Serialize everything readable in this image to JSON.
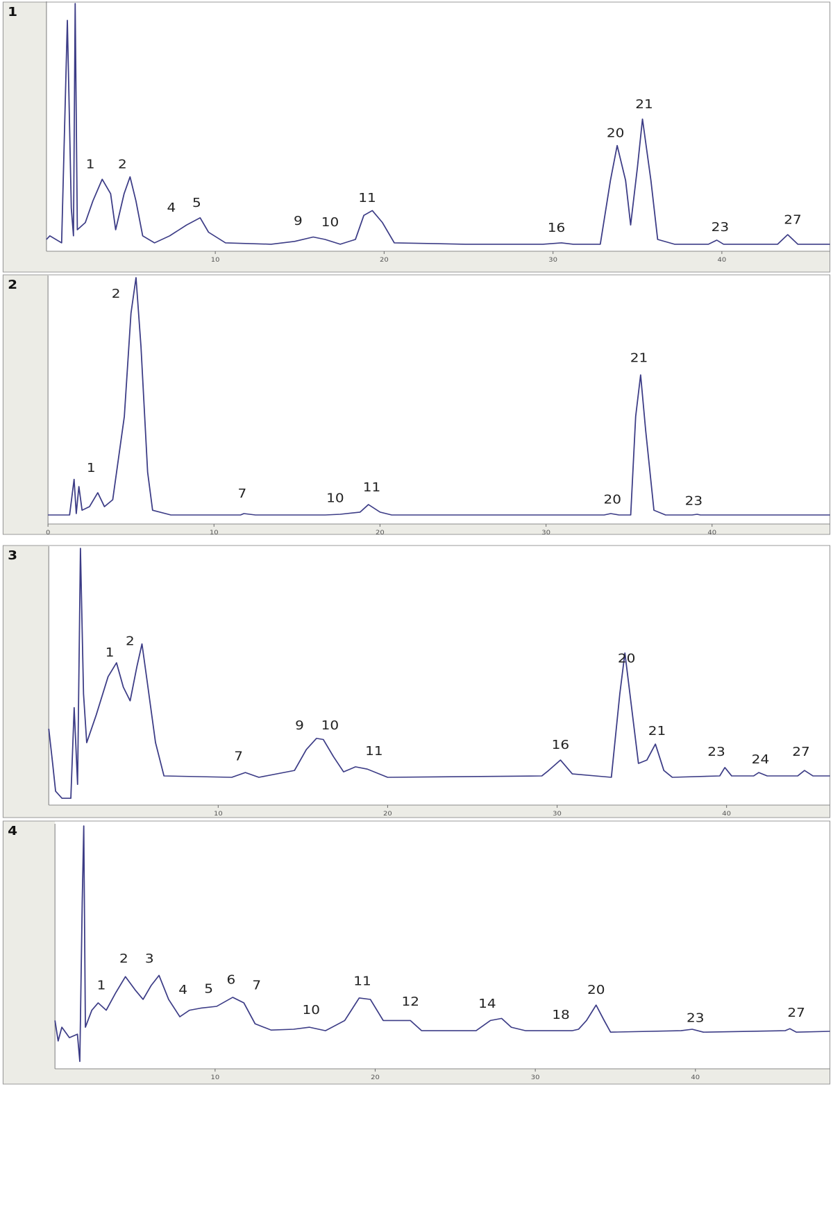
{
  "chart_data": [
    {
      "type": "line",
      "title": "1",
      "color": "#3c3c86",
      "x": [
        0,
        0.2,
        0.9,
        1.24,
        1.47,
        1.6,
        1.7,
        1.83,
        2.3,
        2.75,
        3.3,
        3.8,
        4.1,
        4.6,
        4.95,
        5.3,
        5.7,
        6.4,
        7.3,
        8.3,
        9.1,
        9.6,
        10.6,
        13.3,
        14.7,
        15.8,
        16.5,
        17.4,
        18.3,
        18.8,
        19.3,
        19.9,
        20.6,
        24.8,
        29.4,
        30.5,
        31.2,
        32.8,
        33.4,
        33.8,
        34.3,
        34.6,
        35,
        35.3,
        35.8,
        36.2,
        37.2,
        39.2,
        39.7,
        40.1,
        43.3,
        43.9,
        44.5,
        46.4
      ],
      "values": [
        2,
        3.5,
        0.6,
        93,
        15,
        3.5,
        100,
        6,
        9,
        18,
        27,
        21,
        6,
        21,
        28,
        18,
        3.5,
        0.6,
        3.5,
        8,
        11,
        5,
        0.6,
        0,
        1.2,
        3,
        2,
        0,
        2,
        12,
        14,
        9,
        0.6,
        0,
        0,
        0.6,
        0,
        0,
        26.5,
        41,
        26.5,
        8,
        32,
        52,
        26.5,
        2,
        0,
        0,
        1.7,
        0,
        0,
        4,
        0,
        0
      ],
      "xlim": [
        0,
        46.4
      ],
      "ylim": [
        -2.9,
        100
      ],
      "xticks": [
        10,
        20,
        30,
        40
      ],
      "annotations": [
        {
          "text": "1",
          "x": 2.6,
          "y": 33
        },
        {
          "text": "2",
          "x": 4.5,
          "y": 33
        },
        {
          "text": "4",
          "x": 7.4,
          "y": 15
        },
        {
          "text": "5",
          "x": 8.9,
          "y": 17
        },
        {
          "text": "9",
          "x": 14.9,
          "y": 9.5
        },
        {
          "text": "10",
          "x": 16.8,
          "y": 9
        },
        {
          "text": "11",
          "x": 19.0,
          "y": 19
        },
        {
          "text": "16",
          "x": 30.2,
          "y": 6.6
        },
        {
          "text": "20",
          "x": 33.7,
          "y": 46
        },
        {
          "text": "21",
          "x": 35.4,
          "y": 58
        },
        {
          "text": "23",
          "x": 39.9,
          "y": 7
        },
        {
          "text": "27",
          "x": 44.2,
          "y": 10
        }
      ]
    },
    {
      "type": "line",
      "title": "2",
      "color": "#3c3c86",
      "x": [
        0,
        1.3,
        1.57,
        1.7,
        1.86,
        2.05,
        2.5,
        3.0,
        3.4,
        3.9,
        4.6,
        5.0,
        5.3,
        5.6,
        6.0,
        6.3,
        7.4,
        11.6,
        11.8,
        12.5,
        16.7,
        17.6,
        18.8,
        19.3,
        20.0,
        20.7,
        33.5,
        33.9,
        34.4,
        35.1,
        35.4,
        35.7,
        36.0,
        36.5,
        37.2,
        38.8,
        39.1,
        39.3,
        47.1
      ],
      "values": [
        0,
        0,
        15,
        0.6,
        12,
        2,
        3.5,
        9.4,
        3.5,
        6.4,
        41.5,
        85,
        100,
        71,
        18,
        2,
        0,
        0,
        0.6,
        0,
        0,
        0.3,
        1.2,
        4.4,
        1.2,
        0,
        0,
        0.6,
        0,
        0,
        41.5,
        59,
        35.7,
        2,
        0,
        0,
        0.3,
        0,
        0
      ],
      "xlim": [
        0,
        47.1
      ],
      "ylim": [
        -3.8,
        100
      ],
      "xticks": [
        0,
        10,
        20,
        30,
        40
      ],
      "annotations": [
        {
          "text": "1",
          "x": 2.6,
          "y": 19.6
        },
        {
          "text": "2",
          "x": 4.1,
          "y": 93
        },
        {
          "text": "7",
          "x": 11.7,
          "y": 8.8
        },
        {
          "text": "10",
          "x": 17.3,
          "y": 7
        },
        {
          "text": "11",
          "x": 19.5,
          "y": 11.4
        },
        {
          "text": "20",
          "x": 34.0,
          "y": 6.4
        },
        {
          "text": "21",
          "x": 35.6,
          "y": 66
        },
        {
          "text": "23",
          "x": 38.9,
          "y": 5.8
        }
      ]
    },
    {
      "type": "line",
      "title": "3",
      "color": "#3c3c86",
      "x": [
        0,
        0.23,
        0.4,
        0.78,
        1.3,
        1.5,
        1.7,
        1.87,
        2.05,
        2.24,
        2.8,
        3.5,
        4.0,
        4.4,
        4.8,
        5.2,
        5.5,
        5.8,
        6.3,
        6.8,
        10.8,
        11.6,
        12.4,
        14.5,
        15.2,
        15.8,
        16.2,
        16.8,
        17.4,
        18.1,
        18.8,
        20,
        29.1,
        29.5,
        30.2,
        30.9,
        33.2,
        33.7,
        34.0,
        34.3,
        34.8,
        35.3,
        35.8,
        36.3,
        36.8,
        39.6,
        39.9,
        40.3,
        41.6,
        41.9,
        42.4,
        44.2,
        44.6,
        45.1,
        46.1
      ],
      "values": [
        20.7,
        5.5,
        -6.7,
        -9.8,
        -9.8,
        30,
        -3.7,
        100,
        36,
        14.6,
        26.8,
        43.6,
        49.7,
        39,
        33,
        48,
        58,
        42,
        14.6,
        0,
        -0.6,
        1.5,
        -0.6,
        2.4,
        11.6,
        16.5,
        16,
        8.5,
        1.8,
        4,
        3,
        -0.6,
        0,
        2.4,
        7,
        0.9,
        -0.6,
        36,
        54,
        36,
        5.5,
        7,
        14,
        2.4,
        -0.6,
        0,
        3.7,
        0,
        0,
        1.5,
        0,
        0,
        2.4,
        0,
        0
      ],
      "xlim": [
        0,
        46.1
      ],
      "ylim": [
        -12.8,
        100
      ],
      "xticks": [
        10,
        20,
        30,
        40
      ],
      "annotations": [
        {
          "text": "1",
          "x": 3.6,
          "y": 54
        },
        {
          "text": "2",
          "x": 4.8,
          "y": 59
        },
        {
          "text": "7",
          "x": 11.2,
          "y": 8.5
        },
        {
          "text": "9",
          "x": 14.8,
          "y": 22
        },
        {
          "text": "10",
          "x": 16.6,
          "y": 22
        },
        {
          "text": "11",
          "x": 19.2,
          "y": 10.7
        },
        {
          "text": "16",
          "x": 30.2,
          "y": 13.4
        },
        {
          "text": "20",
          "x": 34.1,
          "y": 51.5
        },
        {
          "text": "21",
          "x": 35.9,
          "y": 19.5
        },
        {
          "text": "23",
          "x": 39.4,
          "y": 10.4
        },
        {
          "text": "24",
          "x": 42.0,
          "y": 7
        },
        {
          "text": "27",
          "x": 44.4,
          "y": 10.4
        }
      ]
    },
    {
      "type": "line",
      "title": "4",
      "color": "#3c3c86",
      "x": [
        0,
        0.2,
        0.43,
        0.9,
        1.4,
        1.55,
        1.7,
        1.8,
        1.9,
        2.3,
        2.7,
        3.2,
        3.8,
        4.4,
        5.0,
        5.5,
        6.0,
        6.5,
        7.1,
        7.8,
        8.4,
        9.1,
        10.1,
        11.1,
        11.8,
        12.5,
        13.5,
        14.9,
        15.9,
        16.9,
        18.1,
        19.0,
        19.7,
        20.5,
        21.2,
        22.2,
        22.9,
        26.3,
        27.2,
        27.9,
        28.5,
        29.4,
        32.3,
        32.7,
        33.2,
        33.8,
        34.3,
        34.7,
        39.1,
        39.8,
        40.5,
        45.6,
        45.9,
        46.3,
        48.4
      ],
      "values": [
        5,
        -5,
        1.7,
        -3.4,
        -1.7,
        -15,
        62.7,
        100,
        1.7,
        10,
        13.6,
        10,
        18.6,
        26.4,
        20,
        15.3,
        22,
        27,
        15.3,
        6.8,
        10,
        11,
        11.9,
        16.3,
        13.6,
        3.4,
        0.3,
        0.7,
        1.7,
        0,
        5,
        16,
        15.3,
        5,
        5,
        5,
        0,
        0,
        5,
        6,
        1.7,
        0,
        0,
        0.7,
        5,
        12.5,
        5,
        -0.7,
        0,
        0.7,
        -0.7,
        0,
        1,
        -0.7,
        -0.3
      ],
      "xlim": [
        0,
        48.4
      ],
      "ylim": [
        -18.6,
        100
      ],
      "xticks": [
        10,
        20,
        30,
        40
      ],
      "annotations": [
        {
          "text": "1",
          "x": 2.9,
          "y": 22
        },
        {
          "text": "2",
          "x": 4.3,
          "y": 35
        },
        {
          "text": "3",
          "x": 5.9,
          "y": 35
        },
        {
          "text": "4",
          "x": 8.0,
          "y": 19.7
        },
        {
          "text": "5",
          "x": 9.6,
          "y": 20.3
        },
        {
          "text": "6",
          "x": 11.0,
          "y": 24.7
        },
        {
          "text": "7",
          "x": 12.6,
          "y": 22
        },
        {
          "text": "10",
          "x": 16.0,
          "y": 10
        },
        {
          "text": "11",
          "x": 19.2,
          "y": 24
        },
        {
          "text": "12",
          "x": 22.2,
          "y": 14
        },
        {
          "text": "14",
          "x": 27.0,
          "y": 13
        },
        {
          "text": "18",
          "x": 31.6,
          "y": 7.5
        },
        {
          "text": "20",
          "x": 33.8,
          "y": 19.7
        },
        {
          "text": "23",
          "x": 40.0,
          "y": 6
        },
        {
          "text": "27",
          "x": 46.3,
          "y": 8.5
        }
      ]
    }
  ]
}
